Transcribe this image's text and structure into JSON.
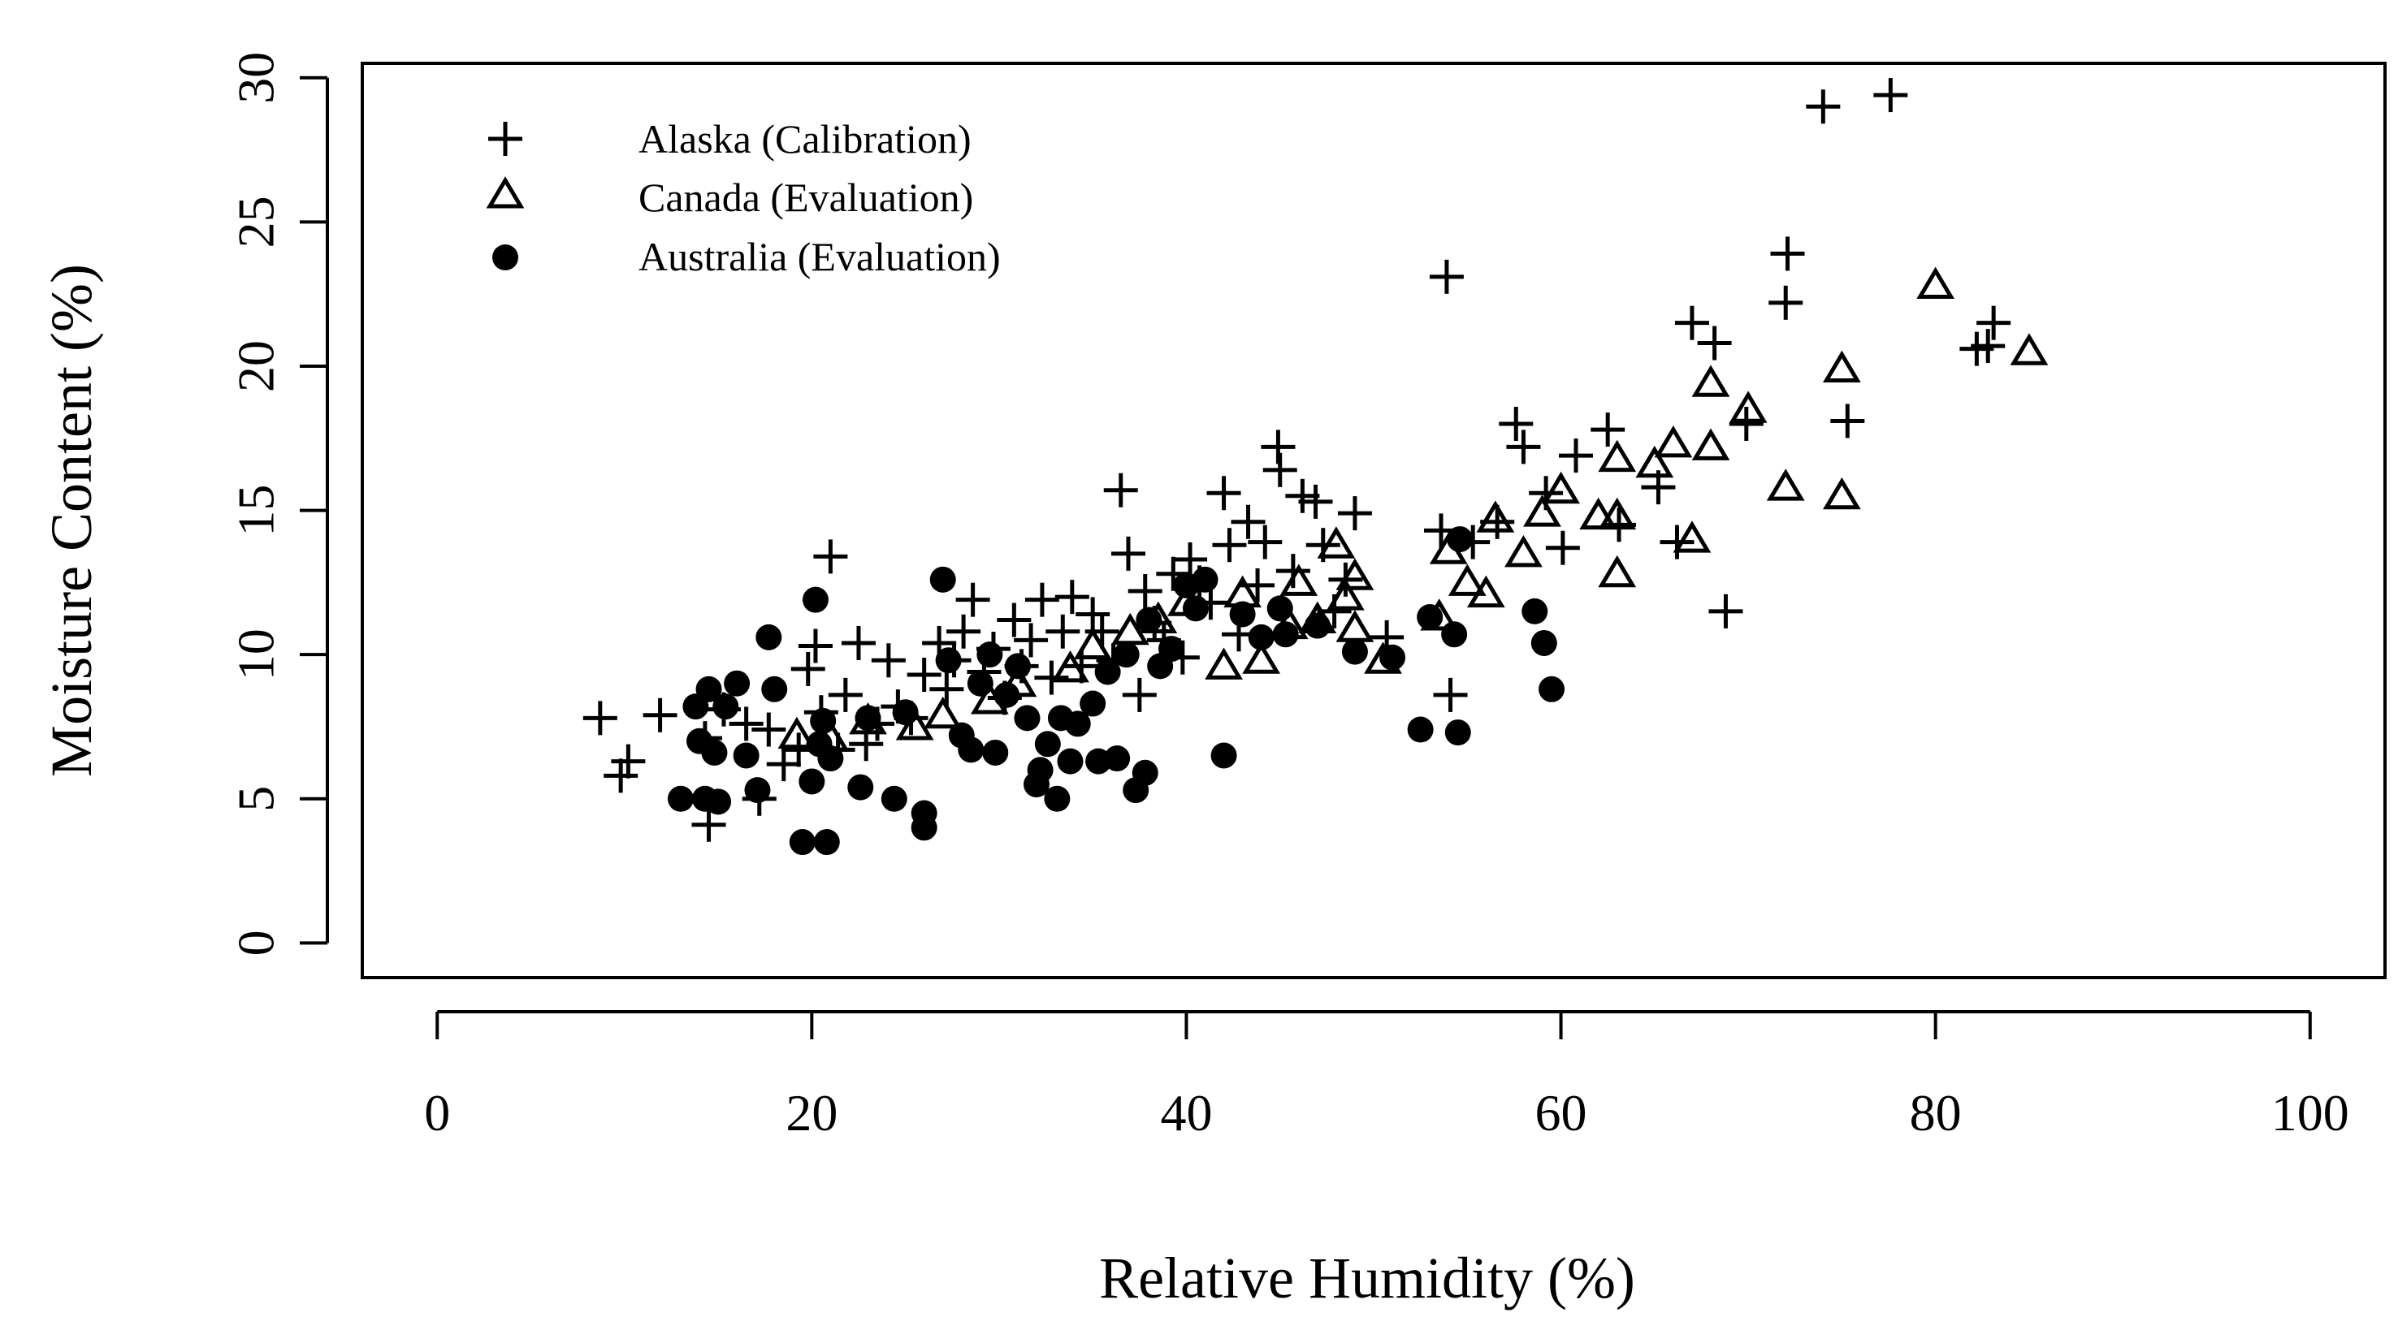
{
  "chart_data": {
    "type": "scatter",
    "title": "",
    "xlabel": "Relative Humidity (%)",
    "ylabel": "Moisture Content (%)",
    "xlim": [
      -4,
      104
    ],
    "ylim": [
      -1.2,
      30.5
    ],
    "xticks": [
      0,
      20,
      40,
      60,
      80,
      100
    ],
    "yticks": [
      0,
      5,
      10,
      15,
      20,
      25,
      30
    ],
    "grid": false,
    "legend_position": "top-left",
    "series": [
      {
        "name": "Alaska (Calibration)",
        "marker": "plus",
        "points": [
          [
            8.7,
            7.8
          ],
          [
            9.8,
            5.8
          ],
          [
            10.2,
            6.3
          ],
          [
            11.9,
            7.9
          ],
          [
            14.3,
            7.1
          ],
          [
            14.5,
            4.1
          ],
          [
            15.3,
            8.1
          ],
          [
            16.5,
            7.6
          ],
          [
            17.2,
            5.0
          ],
          [
            17.7,
            7.4
          ],
          [
            18.5,
            6.2
          ],
          [
            19.3,
            6.7
          ],
          [
            19.8,
            9.5
          ],
          [
            20.2,
            10.3
          ],
          [
            20.5,
            8.0
          ],
          [
            21.0,
            13.4
          ],
          [
            21.4,
            6.7
          ],
          [
            21.8,
            8.6
          ],
          [
            22.5,
            10.4
          ],
          [
            22.9,
            6.9
          ],
          [
            23.5,
            7.6
          ],
          [
            24.1,
            9.8
          ],
          [
            24.6,
            8.2
          ],
          [
            25.3,
            7.8
          ],
          [
            26.0,
            9.3
          ],
          [
            26.8,
            10.4
          ],
          [
            27.2,
            8.8
          ],
          [
            27.6,
            9.8
          ],
          [
            28.1,
            10.8
          ],
          [
            28.6,
            11.9
          ],
          [
            29.2,
            9.4
          ],
          [
            29.7,
            10.2
          ],
          [
            30.3,
            8.5
          ],
          [
            30.8,
            11.2
          ],
          [
            31.2,
            9.6
          ],
          [
            31.7,
            10.5
          ],
          [
            32.3,
            11.9
          ],
          [
            32.8,
            9.2
          ],
          [
            33.4,
            10.8
          ],
          [
            33.9,
            12.0
          ],
          [
            34.4,
            9.6
          ],
          [
            35.0,
            11.4
          ],
          [
            35.5,
            10.8
          ],
          [
            36.1,
            9.8
          ],
          [
            36.5,
            15.7
          ],
          [
            36.9,
            13.5
          ],
          [
            37.5,
            8.6
          ],
          [
            37.8,
            12.2
          ],
          [
            38.3,
            11.1
          ],
          [
            38.8,
            10.5
          ],
          [
            39.3,
            12.8
          ],
          [
            39.8,
            9.9
          ],
          [
            40.2,
            13.3
          ],
          [
            40.7,
            12.5
          ],
          [
            41.3,
            11.8
          ],
          [
            42.0,
            15.6
          ],
          [
            42.3,
            13.8
          ],
          [
            42.8,
            10.7
          ],
          [
            43.3,
            14.6
          ],
          [
            43.8,
            12.4
          ],
          [
            44.2,
            13.9
          ],
          [
            44.9,
            17.2
          ],
          [
            45.0,
            16.4
          ],
          [
            45.7,
            12.9
          ],
          [
            46.2,
            15.5
          ],
          [
            46.9,
            15.3
          ],
          [
            47.3,
            13.8
          ],
          [
            47.9,
            11.5
          ],
          [
            48.5,
            12.6
          ],
          [
            49.0,
            14.9
          ],
          [
            50.7,
            10.6
          ],
          [
            53.6,
            14.3
          ],
          [
            53.9,
            23.1
          ],
          [
            54.1,
            8.6
          ],
          [
            55.3,
            13.9
          ],
          [
            56.6,
            14.6
          ],
          [
            57.6,
            18.0
          ],
          [
            58.0,
            17.2
          ],
          [
            59.2,
            15.6
          ],
          [
            60.1,
            13.7
          ],
          [
            60.8,
            16.9
          ],
          [
            62.5,
            17.8
          ],
          [
            63.1,
            14.5
          ],
          [
            65.2,
            15.8
          ],
          [
            66.2,
            13.9
          ],
          [
            67.0,
            21.5
          ],
          [
            68.2,
            20.8
          ],
          [
            68.8,
            11.5
          ],
          [
            69.9,
            18.0
          ],
          [
            72.1,
            23.9
          ],
          [
            72.0,
            22.2
          ],
          [
            74.0,
            29.0
          ],
          [
            75.3,
            18.1
          ],
          [
            77.6,
            29.4
          ],
          [
            82.2,
            20.6
          ],
          [
            83.1,
            21.5
          ],
          [
            82.8,
            20.7
          ]
        ]
      },
      {
        "name": "Canada (Evaluation)",
        "marker": "triangle",
        "points": [
          [
            19.2,
            7.2
          ],
          [
            21.0,
            7.1
          ],
          [
            23.0,
            7.7
          ],
          [
            25.5,
            7.5
          ],
          [
            27.0,
            7.9
          ],
          [
            29.5,
            8.4
          ],
          [
            31.0,
            9.0
          ],
          [
            33.8,
            9.5
          ],
          [
            35.0,
            10.3
          ],
          [
            37.0,
            10.8
          ],
          [
            38.5,
            11.2
          ],
          [
            40.0,
            11.8
          ],
          [
            42.0,
            9.6
          ],
          [
            43.0,
            12.1
          ],
          [
            44.0,
            9.8
          ],
          [
            45.5,
            11.0
          ],
          [
            46.0,
            12.5
          ],
          [
            47.0,
            11.2
          ],
          [
            48.0,
            13.8
          ],
          [
            48.5,
            12.0
          ],
          [
            49.0,
            12.7
          ],
          [
            49.0,
            10.9
          ],
          [
            50.5,
            9.8
          ],
          [
            53.5,
            11.3
          ],
          [
            54.0,
            13.6
          ],
          [
            55.0,
            12.5
          ],
          [
            56.0,
            12.1
          ],
          [
            56.5,
            14.7
          ],
          [
            58.0,
            13.5
          ],
          [
            59.0,
            14.9
          ],
          [
            60.0,
            15.7
          ],
          [
            62.0,
            14.8
          ],
          [
            63.0,
            12.8
          ],
          [
            63.0,
            16.8
          ],
          [
            63.0,
            14.8
          ],
          [
            65.0,
            16.6
          ],
          [
            66.0,
            17.3
          ],
          [
            67.0,
            14.0
          ],
          [
            68.0,
            17.2
          ],
          [
            68.0,
            19.4
          ],
          [
            70.0,
            18.5
          ],
          [
            72.0,
            15.8
          ],
          [
            75.0,
            19.9
          ],
          [
            75.0,
            15.5
          ],
          [
            80.0,
            22.8
          ],
          [
            85.0,
            20.5
          ]
        ]
      },
      {
        "name": "Australia (Evaluation)",
        "marker": "dot",
        "points": [
          [
            13.0,
            5.0
          ],
          [
            13.8,
            8.2
          ],
          [
            14.0,
            7.0
          ],
          [
            14.3,
            5.0
          ],
          [
            14.5,
            8.8
          ],
          [
            14.8,
            6.6
          ],
          [
            15.0,
            4.9
          ],
          [
            15.4,
            8.2
          ],
          [
            16.0,
            9.0
          ],
          [
            16.5,
            6.5
          ],
          [
            17.1,
            5.3
          ],
          [
            17.7,
            10.6
          ],
          [
            18.0,
            8.8
          ],
          [
            19.5,
            3.5
          ],
          [
            20.0,
            5.6
          ],
          [
            20.2,
            11.9
          ],
          [
            20.4,
            6.9
          ],
          [
            20.6,
            7.7
          ],
          [
            20.8,
            3.5
          ],
          [
            21.0,
            6.4
          ],
          [
            22.6,
            5.4
          ],
          [
            23.0,
            7.8
          ],
          [
            24.4,
            5.0
          ],
          [
            25.0,
            8.0
          ],
          [
            26.0,
            4.5
          ],
          [
            26.0,
            4.0
          ],
          [
            27.0,
            12.6
          ],
          [
            27.3,
            9.8
          ],
          [
            28.0,
            7.2
          ],
          [
            28.5,
            6.7
          ],
          [
            29.0,
            9.0
          ],
          [
            29.5,
            10.0
          ],
          [
            29.8,
            6.6
          ],
          [
            30.4,
            8.6
          ],
          [
            31.0,
            9.6
          ],
          [
            31.5,
            7.8
          ],
          [
            32.0,
            5.5
          ],
          [
            32.2,
            6.0
          ],
          [
            32.6,
            6.9
          ],
          [
            33.1,
            5.0
          ],
          [
            33.3,
            7.8
          ],
          [
            33.8,
            6.3
          ],
          [
            34.2,
            7.6
          ],
          [
            35.0,
            8.3
          ],
          [
            35.3,
            6.3
          ],
          [
            35.8,
            9.4
          ],
          [
            36.3,
            6.4
          ],
          [
            36.8,
            10.0
          ],
          [
            37.3,
            5.3
          ],
          [
            37.8,
            5.9
          ],
          [
            38.0,
            11.2
          ],
          [
            38.6,
            9.6
          ],
          [
            39.2,
            10.2
          ],
          [
            40.0,
            12.4
          ],
          [
            40.5,
            11.6
          ],
          [
            41.0,
            12.6
          ],
          [
            42.0,
            6.5
          ],
          [
            43.0,
            11.4
          ],
          [
            44.0,
            10.6
          ],
          [
            45.0,
            11.6
          ],
          [
            45.3,
            10.7
          ],
          [
            47.0,
            11.0
          ],
          [
            49.0,
            10.1
          ],
          [
            51.0,
            9.9
          ],
          [
            52.5,
            7.4
          ],
          [
            53.0,
            11.3
          ],
          [
            54.3,
            10.7
          ],
          [
            54.5,
            7.3
          ],
          [
            54.6,
            14.0
          ],
          [
            58.6,
            11.5
          ],
          [
            59.1,
            10.4
          ],
          [
            59.5,
            8.8
          ]
        ]
      }
    ]
  }
}
